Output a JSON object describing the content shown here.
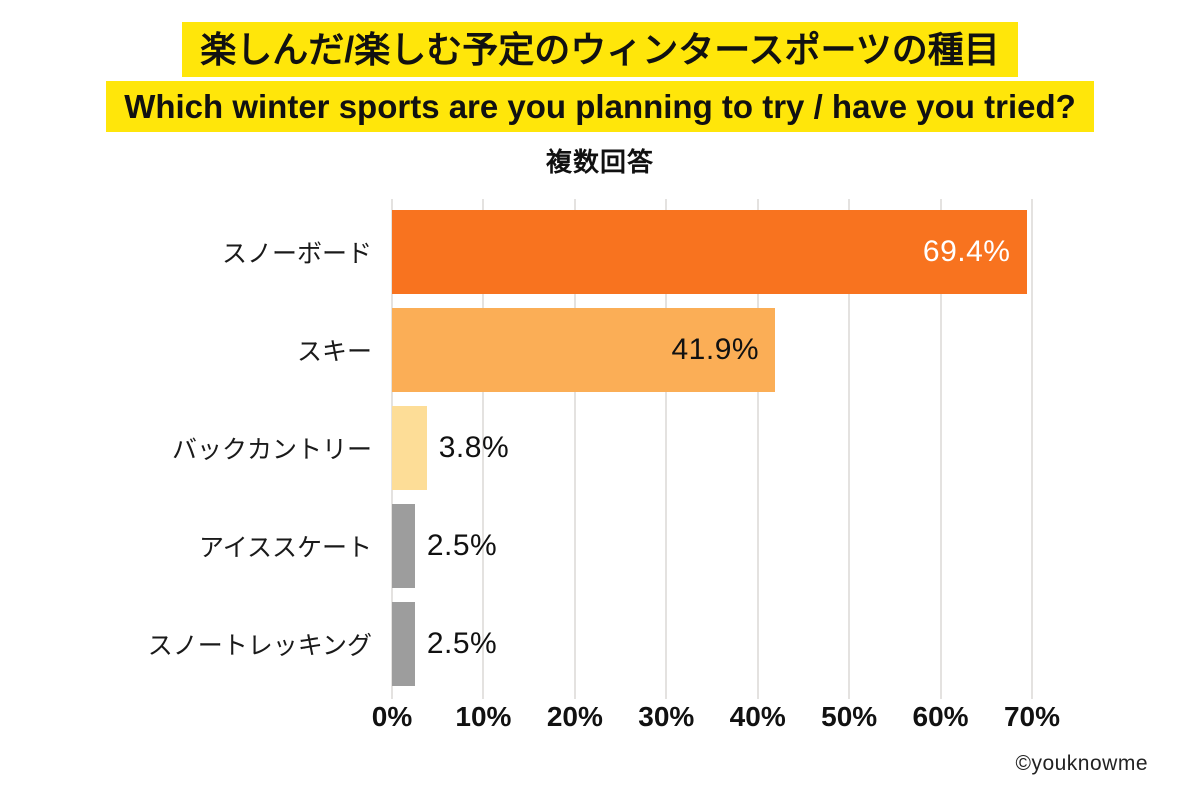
{
  "header": {
    "title_jp": "楽しんだ/楽しむ予定のウィンタースポーツの種目",
    "title_en": "Which winter sports are you planning to try / have you tried?",
    "subtitle": "複数回答",
    "highlight_color": "#ffe60a"
  },
  "chart_data": {
    "type": "bar",
    "orientation": "horizontal",
    "title": "楽しんだ/楽しむ予定のウィンタースポーツの種目",
    "subtitle": "複数回答",
    "categories": [
      "スノーボード",
      "スキー",
      "バックカントリー",
      "アイススケート",
      "スノートレッキング"
    ],
    "values": [
      69.4,
      41.9,
      3.8,
      2.5,
      2.5
    ],
    "value_labels": [
      "69.4%",
      "41.9%",
      "3.8%",
      "2.5%",
      "2.5%"
    ],
    "bar_colors": [
      "#f8731f",
      "#fbae56",
      "#fddd97",
      "#9d9d9d",
      "#9d9d9d"
    ],
    "value_label_position": [
      "inside",
      "inside",
      "outside",
      "outside",
      "outside"
    ],
    "value_label_colors": [
      "#ffffff",
      "#111111",
      "#111111",
      "#111111",
      "#111111"
    ],
    "x_ticks": [
      "0%",
      "10%",
      "20%",
      "30%",
      "40%",
      "50%",
      "60%",
      "70%"
    ],
    "x_tick_values": [
      0,
      10,
      20,
      30,
      40,
      50,
      60,
      70
    ],
    "xlim": [
      0,
      70
    ],
    "grid": true,
    "gridline_color": "#e4e2e0"
  },
  "footer": {
    "credit": "©youknowme"
  }
}
